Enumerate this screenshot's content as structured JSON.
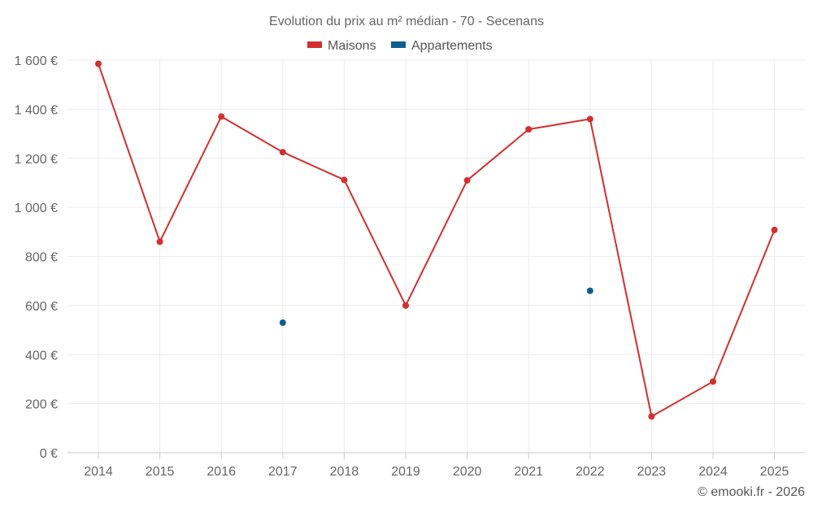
{
  "chart_data": {
    "type": "line",
    "title": "Evolution du prix au m² médian - 70 - Secenans",
    "x": [
      "2014",
      "2015",
      "2016",
      "2017",
      "2018",
      "2019",
      "2020",
      "2021",
      "2022",
      "2023",
      "2024",
      "2025"
    ],
    "series": [
      {
        "name": "Maisons",
        "color": "#d32f2f",
        "values": [
          1585,
          860,
          1370,
          1225,
          1112,
          600,
          1110,
          1318,
          1360,
          148,
          290,
          908
        ]
      },
      {
        "name": "Appartements",
        "color": "#0d5f91",
        "values": [
          null,
          null,
          null,
          530,
          null,
          null,
          null,
          null,
          660,
          null,
          null,
          null
        ]
      }
    ],
    "yticks": [
      "0 €",
      "200 €",
      "400 €",
      "600 €",
      "800 €",
      "1 000 €",
      "1 200 €",
      "1 400 €",
      "1 600 €"
    ],
    "ytick_values": [
      0,
      200,
      400,
      600,
      800,
      1000,
      1200,
      1400,
      1600
    ],
    "ylim": [
      0,
      1600
    ],
    "grid": true,
    "legend_position": "top-center"
  },
  "credit": "© emooki.fr - 2026"
}
